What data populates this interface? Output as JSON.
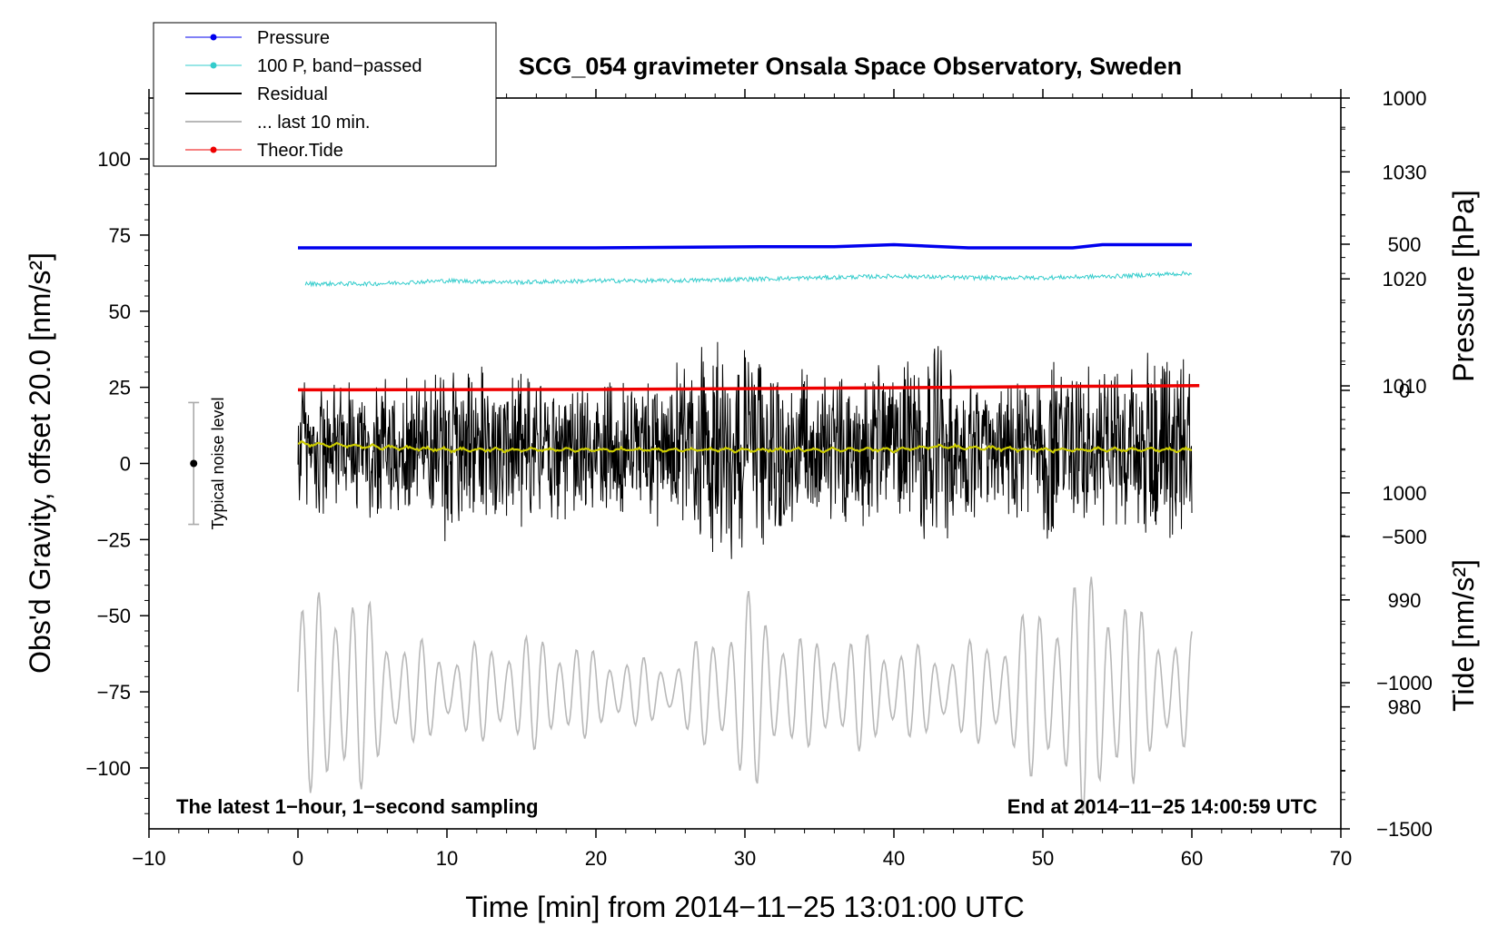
{
  "chart_data": {
    "type": "line",
    "title": "SCG_054 gravimeter Onsala Space Observatory, Sweden",
    "xlabel": "Time [min] from 2014−11−25 13:01:00 UTC",
    "ylabel": "Obs'd Gravity, offset 20.0 [nm/s²]",
    "ylabel_right_top": "Pressure [hPa]",
    "ylabel_right_bottom": "Tide [nm/s²]",
    "xlim": [
      -10,
      70
    ],
    "ylim": [
      -120,
      120
    ],
    "pressure_lim": [
      968.6,
      1036.9
    ],
    "tide_lim": [
      -1500,
      1000
    ],
    "x_ticks": [
      -10,
      0,
      10,
      20,
      30,
      40,
      50,
      60,
      70
    ],
    "x_tick_labels": [
      "−10",
      "0",
      "10",
      "20",
      "30",
      "40",
      "50",
      "60",
      "70"
    ],
    "y_ticks": [
      -100,
      -75,
      -50,
      -25,
      0,
      25,
      50,
      75,
      100
    ],
    "y_tick_labels": [
      "−100",
      "−75",
      "−50",
      "−25",
      "0",
      "25",
      "50",
      "75",
      "100"
    ],
    "pressure_ticks": [
      980,
      990,
      1000,
      1010,
      1020,
      1030
    ],
    "pressure_tick_labels": [
      "980",
      "990",
      "1000",
      "1010",
      "1020",
      "1030"
    ],
    "tide_ticks": [
      -1500,
      -1000,
      -500,
      0,
      500,
      1000
    ],
    "tide_tick_labels": [
      "−1500",
      "−1000",
      "−500",
      "0",
      "500",
      "1000"
    ],
    "series": [
      {
        "name": "Pressure",
        "color": "#0000ee",
        "axis": "pressure",
        "x": [
          0,
          10,
          20,
          31,
          36,
          40,
          45,
          52,
          54,
          60
        ],
        "values": [
          1022.9,
          1022.9,
          1022.9,
          1023.0,
          1023.0,
          1023.2,
          1022.9,
          1022.9,
          1023.2,
          1023.2
        ]
      },
      {
        "name": "100 P, band−passed",
        "color": "#33cccc",
        "axis": "gravity",
        "x": [
          0,
          5,
          10,
          15,
          20,
          25,
          30,
          35,
          40,
          45,
          50,
          55,
          60
        ],
        "values": [
          59,
          59,
          60,
          59.5,
          60,
          60,
          60.5,
          61,
          61.5,
          61,
          61,
          61.5,
          62.5
        ]
      },
      {
        "name": "Residual",
        "color": "#000000",
        "axis": "gravity",
        "x_range": [
          0,
          60
        ],
        "center": 5,
        "amplitude_envelope": [
          [
            0,
            28
          ],
          [
            5,
            25
          ],
          [
            10,
            32
          ],
          [
            15,
            28
          ],
          [
            20,
            24
          ],
          [
            25,
            30
          ],
          [
            28.5,
            42
          ],
          [
            35,
            27
          ],
          [
            40,
            30
          ],
          [
            43,
            38
          ],
          [
            45,
            25
          ],
          [
            50,
            33
          ],
          [
            55,
            30
          ],
          [
            59,
            40
          ],
          [
            60,
            30
          ]
        ]
      },
      {
        "name": "... last 10 min.",
        "color": "#b8b8b8",
        "axis": "gravity",
        "x_range": [
          0,
          60
        ],
        "center": -75,
        "amplitude_envelope": [
          [
            0,
            30
          ],
          [
            3,
            42
          ],
          [
            6,
            22
          ],
          [
            10,
            14
          ],
          [
            13,
            18
          ],
          [
            17,
            20
          ],
          [
            20,
            14
          ],
          [
            25,
            10
          ],
          [
            28,
            22
          ],
          [
            30,
            35
          ],
          [
            34,
            18
          ],
          [
            38,
            20
          ],
          [
            43,
            14
          ],
          [
            47,
            20
          ],
          [
            50,
            32
          ],
          [
            54,
            45
          ],
          [
            57,
            25
          ],
          [
            60,
            20
          ]
        ]
      },
      {
        "name": "Theor.Tide",
        "color": "#ee0000",
        "axis": "tide",
        "x": [
          0,
          20,
          34,
          40,
          50,
          60.5
        ],
        "values": [
          2,
          3,
          7,
          9,
          13,
          16
        ]
      },
      {
        "name": "Residual smoothed",
        "color": "#cccc00",
        "axis": "gravity",
        "x": [
          0,
          10,
          20,
          30,
          40,
          43,
          50,
          60
        ],
        "values": [
          6.5,
          4.5,
          4.5,
          4.5,
          4.5,
          5.5,
          4.5,
          4.5
        ]
      }
    ],
    "legend": {
      "placement": "top-left",
      "entries": [
        {
          "label": "Pressure",
          "color": "#0000ee",
          "marker": true
        },
        {
          "label": "100 P, band−passed",
          "color": "#33cccc",
          "marker": true
        },
        {
          "label": "Residual",
          "color": "#000000",
          "marker": false
        },
        {
          "label": "... last 10 min.",
          "color": "#b8b8b8",
          "marker": false
        },
        {
          "label": "Theor.Tide",
          "color": "#ee0000",
          "marker": true
        }
      ]
    },
    "annotations": {
      "bottom_left": "The latest 1−hour, 1−second sampling",
      "bottom_right": "End at 2014−11−25 14:00:59 UTC",
      "noise_label": "Typical noise level",
      "noise_x": -7,
      "noise_range": [
        -20,
        20
      ]
    }
  }
}
